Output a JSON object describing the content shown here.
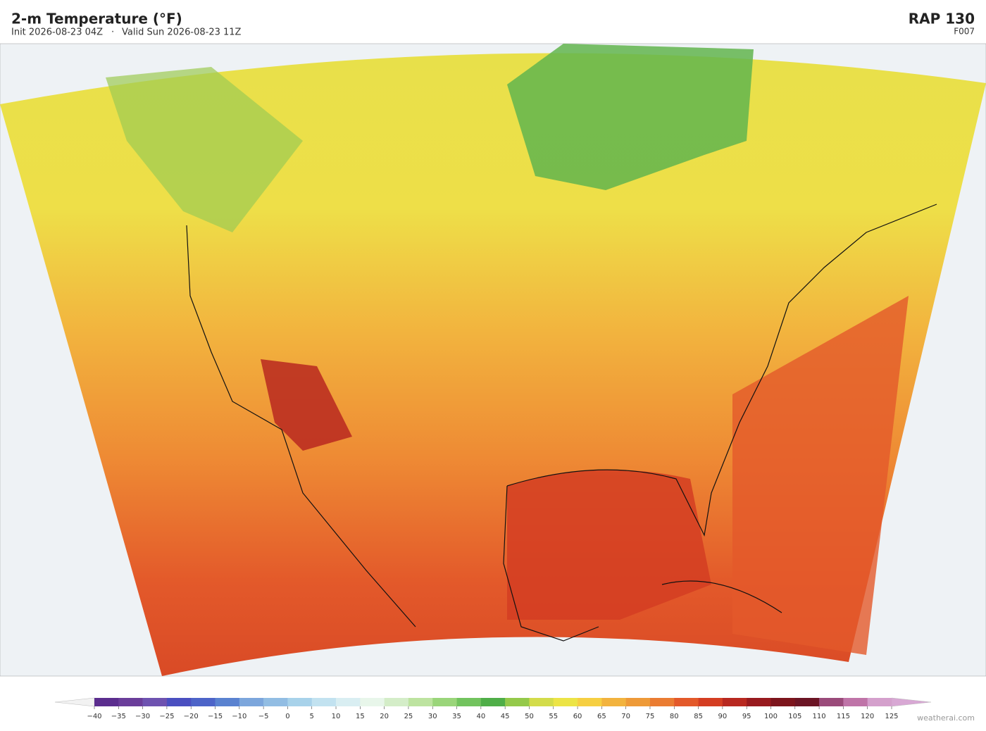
{
  "header": {
    "title": "2-m Temperature  (°F)",
    "init": "Init 2026-08-23 04Z",
    "separator": "·",
    "valid": "Valid Sun 2026-08-23 11Z",
    "model": "RAP  130",
    "forecast_hour": "F007"
  },
  "colorbar": {
    "ticks": [
      {
        "value": -40,
        "label": "−40"
      },
      {
        "value": -35,
        "label": "−35"
      },
      {
        "value": -30,
        "label": "−30"
      },
      {
        "value": -25,
        "label": "−25"
      },
      {
        "value": -20,
        "label": "−20"
      },
      {
        "value": -15,
        "label": "−15"
      },
      {
        "value": -10,
        "label": "−10"
      },
      {
        "value": -5,
        "label": "−5"
      },
      0,
      5,
      10,
      15,
      20,
      25,
      30,
      35,
      40,
      45,
      50,
      55,
      60,
      65,
      70,
      75,
      80,
      85,
      90,
      95,
      100,
      105,
      110,
      115,
      120,
      125
    ],
    "colors": [
      "#5b2d8e",
      "#6a3d9a",
      "#6e52b0",
      "#4a4fc0",
      "#4d64c8",
      "#5a82d0",
      "#7ca6dc",
      "#92bde3",
      "#a8d2ea",
      "#c2e2f0",
      "#d9eef2",
      "#e8f6ea",
      "#d4edc8",
      "#bde3a0",
      "#9ad57a",
      "#72c35e",
      "#4fae48",
      "#94c94a",
      "#d3dc4a",
      "#ece446",
      "#f6cf42",
      "#f2b33e",
      "#ee9a38",
      "#ea7c32",
      "#e3592a",
      "#d43d22",
      "#b82820",
      "#981a1e",
      "#7c141c",
      "#6b1424",
      "#9a4a7a",
      "#bf74a8",
      "#d4a0cc"
    ]
  },
  "footer": {
    "credit": "weatherai.com"
  }
}
